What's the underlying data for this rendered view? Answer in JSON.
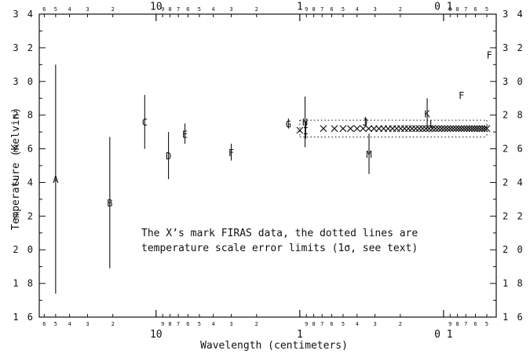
{
  "chart_data": {
    "type": "scatter",
    "xlabel": "Wavelength (centimeters)",
    "ylabel": "Temperature (Kelvin)",
    "x_scale": "log",
    "x_direction": "decreasing",
    "xlim": [
      65,
      0.043
    ],
    "ylim": [
      1.6,
      3.4
    ],
    "y_ticks": [
      1.6,
      1.8,
      2.0,
      2.2,
      2.4,
      2.6,
      2.8,
      3.0,
      3.2,
      3.4
    ],
    "y_tick_labels": [
      "1 6",
      "1 8",
      "2 0",
      "2 2",
      "2 4",
      "2 6",
      "2 8",
      "3 0",
      "3 2",
      "3 4"
    ],
    "x_major_ticks": [
      10,
      1,
      0.1
    ],
    "x_major_labels": [
      "10",
      "1",
      "0 1"
    ],
    "x_minor_tick_labels": [
      "6",
      "5",
      "4",
      "3",
      "2",
      "9",
      "8",
      "7",
      "6",
      "5",
      "4",
      "3",
      "2",
      "9",
      "8",
      "7",
      "6",
      "5",
      "4",
      "3",
      "2",
      "9",
      "8",
      "7",
      "6",
      "5",
      "4"
    ],
    "annotation_lines": [
      "The X’s mark FIRAS data, the dotted lines are",
      "temperature scale error limits (1σ, see text)"
    ],
    "points": [
      {
        "label": "A",
        "x": 50,
        "y": 2.42,
        "err": 0.68
      },
      {
        "label": "B",
        "x": 21,
        "y": 2.28,
        "err": 0.39
      },
      {
        "label": "C",
        "x": 12,
        "y": 2.76,
        "err": 0.16
      },
      {
        "label": "D",
        "x": 8.2,
        "y": 2.56,
        "err": 0.14
      },
      {
        "label": "E",
        "x": 6.3,
        "y": 2.69,
        "err": 0.06
      },
      {
        "label": "F",
        "x": 3.0,
        "y": 2.58,
        "err": 0.05
      },
      {
        "label": "G",
        "x": 1.2,
        "y": 2.75,
        "err": 0.03
      },
      {
        "label": "H",
        "x": 0.92,
        "y": 2.76,
        "err": 0.15
      },
      {
        "label": "I",
        "x": 0.91,
        "y": 2.71,
        "err": 0.05
      },
      {
        "label": "J",
        "x": 0.35,
        "y": 2.76,
        "err": 0.03
      },
      {
        "label": "K",
        "x": 0.13,
        "y": 2.81,
        "err": 0.09
      },
      {
        "label": "L",
        "x": 0.12,
        "y": 2.75,
        "err": 0.0
      },
      {
        "label": "M",
        "x": 0.33,
        "y": 2.57,
        "err": 0.12
      },
      {
        "label": "F",
        "x": 0.075,
        "y": 2.92,
        "err": 0.0
      },
      {
        "label": "F",
        "x": 0.048,
        "y": 3.16,
        "err": 0.0
      }
    ],
    "firas_series": {
      "name": "FIRAS",
      "marker": "x",
      "x_range": [
        1.0,
        0.05
      ],
      "y": [
        2.71,
        2.72,
        2.72,
        2.72,
        2.72,
        2.72,
        2.72,
        2.72,
        2.72,
        2.72,
        2.72,
        2.72,
        2.72,
        2.72,
        2.72,
        2.72,
        2.72,
        2.72,
        2.72,
        2.72,
        2.72,
        2.72,
        2.72,
        2.72,
        2.72,
        2.72,
        2.72,
        2.72,
        2.72,
        2.72,
        2.72,
        2.72,
        2.72,
        2.72,
        2.72,
        2.72,
        2.72,
        2.72,
        2.72,
        2.72,
        2.72,
        2.72,
        2.72,
        2.72
      ]
    },
    "error_limits": {
      "x_range": [
        1.0,
        0.05
      ],
      "upper": 2.77,
      "lower": 2.67,
      "style": "dotted"
    }
  }
}
